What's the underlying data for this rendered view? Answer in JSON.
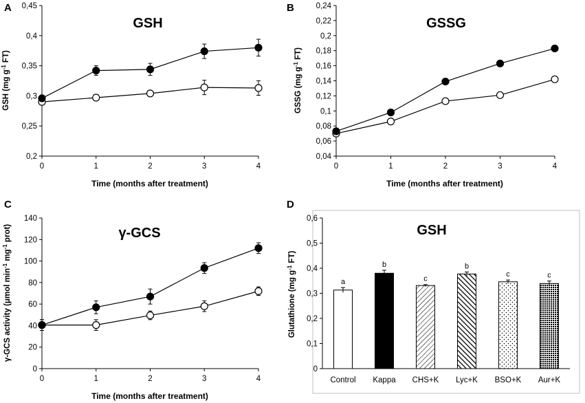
{
  "chart_data": [
    {
      "type": "line",
      "panel": "A",
      "title": "GSH",
      "xlabel": "Time (months after treatment)",
      "ylabel": "GSH (mg g-1 FT)",
      "x": [
        0,
        1,
        2,
        3,
        4
      ],
      "ylim": [
        0.2,
        0.45
      ],
      "yticks": [
        0.2,
        0.25,
        0.3,
        0.35,
        0.4,
        0.45
      ],
      "ytick_labels": [
        "0,2",
        "0,25",
        "0,3",
        "0,35",
        "0,4",
        "0,45"
      ],
      "xtick_labels": [
        "0",
        "1",
        "2",
        "3",
        "4"
      ],
      "series": [
        {
          "name": "filled",
          "marker": "filled",
          "values": [
            0.296,
            0.342,
            0.344,
            0.374,
            0.38
          ],
          "errors": [
            0.005,
            0.008,
            0.01,
            0.012,
            0.014
          ]
        },
        {
          "name": "open",
          "marker": "open",
          "values": [
            0.29,
            0.297,
            0.304,
            0.314,
            0.313
          ],
          "errors": [
            0.004,
            0.004,
            0.005,
            0.012,
            0.012
          ]
        }
      ]
    },
    {
      "type": "line",
      "panel": "B",
      "title": "GSSG",
      "xlabel": "Time (months after treatment)",
      "ylabel": "GSSG (mg g-1 FT)",
      "x": [
        0,
        1,
        2,
        3,
        4
      ],
      "ylim": [
        0.04,
        0.24
      ],
      "yticks": [
        0.04,
        0.06,
        0.08,
        0.1,
        0.12,
        0.14,
        0.16,
        0.18,
        0.2,
        0.22,
        0.24
      ],
      "ytick_labels": [
        "0,04",
        "0,06",
        "0,08",
        "0,1",
        "0,12",
        "0,14",
        "0,16",
        "0,18",
        "0,2",
        "0,22",
        "0,24"
      ],
      "xtick_labels": [
        "0",
        "1",
        "2",
        "3",
        "4"
      ],
      "series": [
        {
          "name": "filled",
          "marker": "filled",
          "values": [
            0.073,
            0.098,
            0.139,
            0.163,
            0.183
          ],
          "errors": [
            0.002,
            0.002,
            0.002,
            0.002,
            0.002
          ]
        },
        {
          "name": "open",
          "marker": "open",
          "values": [
            0.07,
            0.086,
            0.113,
            0.121,
            0.142
          ],
          "errors": [
            0.002,
            0.002,
            0.002,
            0.002,
            0.002
          ]
        }
      ]
    },
    {
      "type": "line",
      "panel": "C",
      "title": "γ-GCS",
      "xlabel": "Time (months after treatment)",
      "ylabel": "γ-GCS activity (μmol min-1 mg-1 prot)",
      "x": [
        0,
        1,
        2,
        3,
        4
      ],
      "ylim": [
        0,
        140
      ],
      "yticks": [
        0,
        20,
        40,
        60,
        80,
        100,
        120,
        140
      ],
      "ytick_labels": [
        "0",
        "20",
        "40",
        "60",
        "80",
        "100",
        "120",
        "140"
      ],
      "xtick_labels": [
        "0",
        "1",
        "2",
        "3",
        "4"
      ],
      "series": [
        {
          "name": "filled",
          "marker": "filled",
          "values": [
            40.5,
            57,
            67,
            93.5,
            112
          ],
          "errors": [
            5,
            6,
            7,
            5,
            5
          ]
        },
        {
          "name": "open",
          "marker": "open",
          "values": [
            40.5,
            40.5,
            49.5,
            58,
            72
          ],
          "errors": [
            5,
            5,
            4,
            5,
            4
          ]
        }
      ]
    },
    {
      "type": "bar",
      "panel": "D",
      "title": "GSH",
      "xlabel": "",
      "ylabel": "Glutathione (mg g-1 FT)",
      "categories": [
        "Control",
        "Kappa",
        "CHS+K",
        "Lyc+K",
        "BSO+K",
        "Aur+K"
      ],
      "values": [
        0.313,
        0.38,
        0.331,
        0.377,
        0.346,
        0.339
      ],
      "errors": [
        0.01,
        0.012,
        0.004,
        0.008,
        0.007,
        0.01
      ],
      "significance": [
        "a",
        "b",
        "c",
        "b",
        "c",
        "c"
      ],
      "fills": [
        "white",
        "black",
        "diagonal-light",
        "diagonal-bold",
        "dots",
        "crosshatch"
      ],
      "ylim": [
        0,
        0.6
      ],
      "yticks": [
        0,
        0.1,
        0.2,
        0.3,
        0.4,
        0.5,
        0.6
      ],
      "ytick_labels": [
        "0",
        "0,1",
        "0,2",
        "0,3",
        "0,4",
        "0,5",
        "0,6"
      ]
    }
  ]
}
